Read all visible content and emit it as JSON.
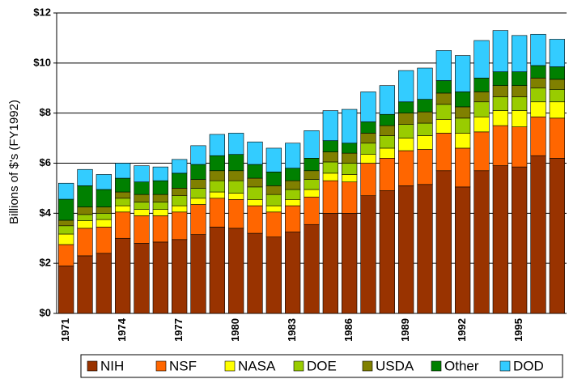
{
  "chart_data": {
    "type": "stacked-bar",
    "y_label": "Billions of $'s (FY1992)",
    "categories": [
      "1971",
      null,
      null,
      "1974",
      null,
      null,
      "1977",
      null,
      null,
      "1980",
      null,
      null,
      "1983",
      null,
      null,
      "1986",
      null,
      null,
      "1989",
      null,
      null,
      "1992",
      null,
      null,
      "1995",
      null,
      null
    ],
    "series": [
      {
        "name": "NIH",
        "color": "#993300",
        "values": [
          1.9,
          2.3,
          2.4,
          3.0,
          2.8,
          2.85,
          2.95,
          3.15,
          3.45,
          3.4,
          3.2,
          3.05,
          3.25,
          3.55,
          4.0,
          4.0,
          4.7,
          4.9,
          5.1,
          5.15,
          5.7,
          5.05,
          5.7,
          5.9,
          5.85,
          6.3,
          6.2
        ]
      },
      {
        "name": "NSF",
        "color": "#ff6600",
        "values": [
          0.85,
          1.1,
          1.05,
          1.05,
          1.1,
          1.05,
          1.1,
          1.2,
          1.15,
          1.15,
          1.1,
          1.0,
          1.05,
          1.1,
          1.3,
          1.25,
          1.3,
          1.3,
          1.4,
          1.4,
          1.5,
          1.55,
          1.55,
          1.6,
          1.6,
          1.55,
          1.6
        ]
      },
      {
        "name": "NASA",
        "color": "#ffff00",
        "values": [
          0.42,
          0.3,
          0.3,
          0.25,
          0.25,
          0.25,
          0.25,
          0.25,
          0.25,
          0.25,
          0.25,
          0.25,
          0.25,
          0.3,
          0.3,
          0.3,
          0.35,
          0.4,
          0.5,
          0.55,
          0.55,
          0.6,
          0.6,
          0.6,
          0.65,
          0.6,
          0.65
        ]
      },
      {
        "name": "DOE",
        "color": "#99cc00",
        "values": [
          0.33,
          0.25,
          0.25,
          0.3,
          0.3,
          0.3,
          0.4,
          0.4,
          0.45,
          0.5,
          0.5,
          0.45,
          0.4,
          0.4,
          0.45,
          0.45,
          0.45,
          0.5,
          0.55,
          0.5,
          0.6,
          0.6,
          0.6,
          0.55,
          0.55,
          0.55,
          0.5
        ]
      },
      {
        "name": "USDA",
        "color": "#808000",
        "values": [
          0.22,
          0.3,
          0.25,
          0.25,
          0.3,
          0.3,
          0.3,
          0.35,
          0.4,
          0.4,
          0.35,
          0.35,
          0.35,
          0.35,
          0.4,
          0.4,
          0.4,
          0.4,
          0.45,
          0.45,
          0.45,
          0.45,
          0.4,
          0.45,
          0.45,
          0.4,
          0.4
        ]
      },
      {
        "name": "Other",
        "color": "#008000",
        "values": [
          0.84,
          0.85,
          0.7,
          0.55,
          0.5,
          0.55,
          0.6,
          0.6,
          0.6,
          0.65,
          0.55,
          0.55,
          0.5,
          0.5,
          0.45,
          0.4,
          0.45,
          0.45,
          0.45,
          0.5,
          0.5,
          0.6,
          0.55,
          0.55,
          0.55,
          0.5,
          0.5
        ]
      },
      {
        "name": "DOD",
        "color": "#33ccff",
        "values": [
          0.64,
          0.65,
          0.6,
          0.6,
          0.65,
          0.55,
          0.55,
          0.75,
          0.85,
          0.85,
          0.9,
          0.95,
          1.0,
          1.1,
          1.2,
          1.35,
          1.2,
          1.15,
          1.25,
          1.25,
          1.2,
          1.45,
          1.5,
          1.65,
          1.45,
          1.25,
          1.1
        ]
      }
    ],
    "ylim": [
      0,
      12
    ],
    "yticks": [
      {
        "value": 0,
        "label": "$0"
      },
      {
        "value": 2,
        "label": "$2"
      },
      {
        "value": 4,
        "label": "$4"
      },
      {
        "value": 6,
        "label": "$6"
      },
      {
        "value": 8,
        "label": "$8"
      },
      {
        "value": 10,
        "label": "$10"
      },
      {
        "value": 12,
        "label": "$12"
      }
    ],
    "grid": true,
    "legend": "bottom"
  }
}
